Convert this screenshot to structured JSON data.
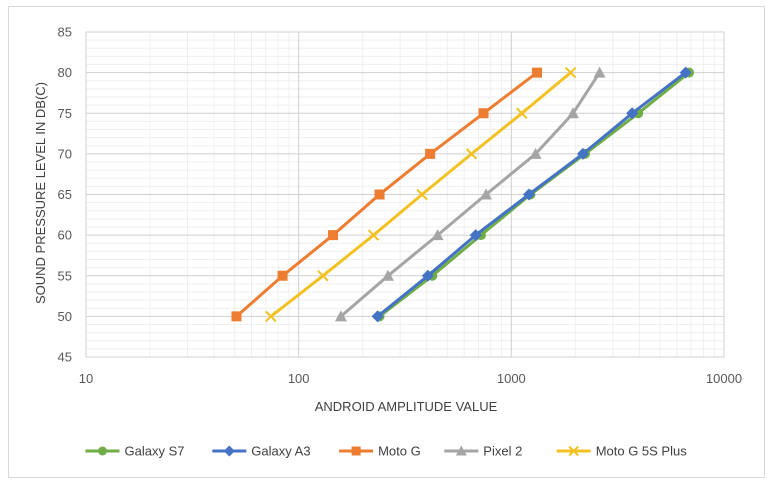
{
  "chart_data": {
    "type": "line",
    "title": "",
    "xlabel": "ANDROID AMPLITUDE VALUE",
    "ylabel": "SOUND PRESSURE LEVEL IN DB(C)",
    "x_scale": "log",
    "xlim": [
      10,
      10000
    ],
    "ylim": [
      45,
      85
    ],
    "x_ticks": [
      10,
      100,
      1000,
      10000
    ],
    "x_tick_labels": [
      "10",
      "100",
      "1000",
      "10000"
    ],
    "y_ticks": [
      45,
      50,
      55,
      60,
      65,
      70,
      75,
      80,
      85
    ],
    "y_tick_labels": [
      "45",
      "50",
      "55",
      "60",
      "65",
      "70",
      "75",
      "80",
      "85"
    ],
    "grid": true,
    "legend_position": "bottom",
    "series": [
      {
        "name": "Galaxy S7",
        "color": "#70ad47",
        "marker": "circle",
        "points": [
          [
            240,
            50
          ],
          [
            425,
            55
          ],
          [
            720,
            60
          ],
          [
            1230,
            65
          ],
          [
            2220,
            70
          ],
          [
            3950,
            75
          ],
          [
            6850,
            80
          ]
        ]
      },
      {
        "name": "Galaxy A3",
        "color": "#4472c4",
        "marker": "diamond",
        "points": [
          [
            235,
            50
          ],
          [
            405,
            55
          ],
          [
            680,
            60
          ],
          [
            1210,
            65
          ],
          [
            2170,
            70
          ],
          [
            3700,
            75
          ],
          [
            6600,
            80
          ]
        ]
      },
      {
        "name": "Moto G",
        "color": "#ed7d31",
        "marker": "square",
        "points": [
          [
            51,
            50
          ],
          [
            84,
            55
          ],
          [
            145,
            60
          ],
          [
            240,
            65
          ],
          [
            415,
            70
          ],
          [
            740,
            75
          ],
          [
            1320,
            80
          ]
        ]
      },
      {
        "name": "Pixel 2",
        "color": "#a5a5a5",
        "marker": "triangle",
        "points": [
          [
            158,
            50
          ],
          [
            263,
            55
          ],
          [
            450,
            60
          ],
          [
            760,
            65
          ],
          [
            1300,
            70
          ],
          [
            1950,
            75
          ],
          [
            2600,
            80
          ]
        ]
      },
      {
        "name": "Moto G 5S Plus",
        "color": "#f2c224",
        "marker": "x",
        "points": [
          [
            74,
            50
          ],
          [
            130,
            55
          ],
          [
            225,
            60
          ],
          [
            380,
            65
          ],
          [
            650,
            70
          ],
          [
            1120,
            75
          ],
          [
            1900,
            80
          ]
        ]
      }
    ]
  }
}
